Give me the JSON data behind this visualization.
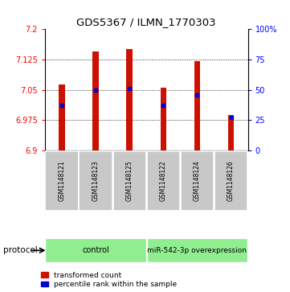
{
  "title": "GDS5367 / ILMN_1770303",
  "samples": [
    "GSM1148121",
    "GSM1148123",
    "GSM1148125",
    "GSM1148122",
    "GSM1148124",
    "GSM1148126"
  ],
  "transformed_counts": [
    7.063,
    7.145,
    7.15,
    7.055,
    7.12,
    6.988
  ],
  "percentile_ranks": [
    37,
    50,
    51,
    37,
    46,
    27
  ],
  "ymin": 6.9,
  "ymax": 7.2,
  "yticks_left": [
    6.9,
    6.975,
    7.05,
    7.125,
    7.2
  ],
  "yticks_right": [
    0,
    25,
    50,
    75,
    100
  ],
  "bar_color": "#CC1100",
  "blue_color": "#0000CC",
  "control_label": "control",
  "mir_label": "miR-542-3p overexpression",
  "protocol_label": "protocol",
  "legend_items": [
    "transformed count",
    "percentile rank within the sample"
  ],
  "background_color": "#ffffff",
  "title_fontsize": 9.5,
  "tick_fontsize": 7,
  "sample_fontsize": 5.5,
  "legend_fontsize": 6.5,
  "proto_fontsize": 7,
  "label_box_color": "#C8C8C8",
  "group_box_color": "#90EE90"
}
